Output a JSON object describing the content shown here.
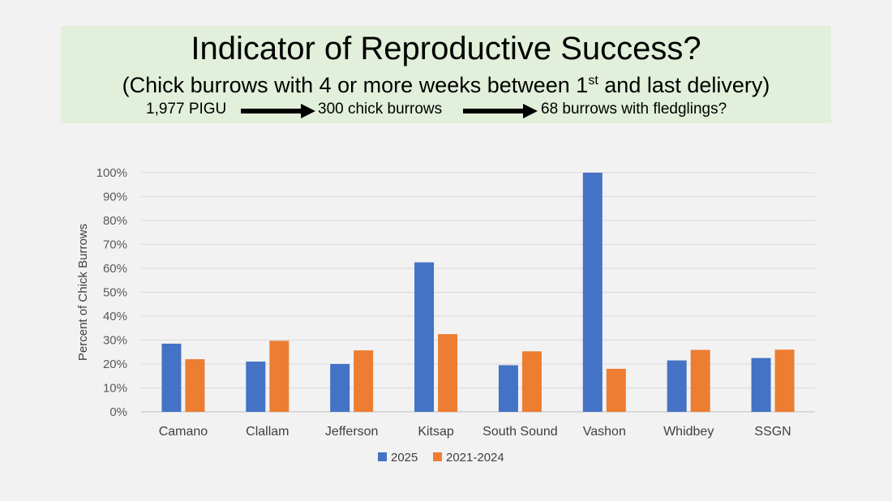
{
  "header": {
    "title": "Indicator of Reproductive Success?",
    "subtitle_main": "(Chick burrows with 4 or more weeks between 1",
    "subtitle_sup": "st",
    "subtitle_end": " and last delivery)",
    "flow": [
      "1,977 PIGU",
      "300 chick burrows",
      "68 burrows with fledglings?"
    ]
  },
  "colors": {
    "series_2025": "#4472c4",
    "series_2021_2024": "#ed7d31",
    "header_bg": "#e2efda"
  },
  "chart_data": {
    "type": "bar",
    "categories": [
      "Camano",
      "Clallam",
      "Jefferson",
      "Kitsap",
      "South Sound",
      "Vashon",
      "Whidbey",
      "SSGN"
    ],
    "series": [
      {
        "name": "2025",
        "values": [
          28.5,
          21,
          20,
          62.5,
          19.5,
          100,
          21.5,
          22.5
        ]
      },
      {
        "name": "2021-2024",
        "values": [
          22,
          29.7,
          25.7,
          32.5,
          25.3,
          18,
          25.9,
          26
        ]
      }
    ],
    "ylabel": "Percent of Chick Burrows",
    "ylim": [
      0,
      100
    ],
    "yticks": [
      "0%",
      "10%",
      "20%",
      "30%",
      "40%",
      "50%",
      "60%",
      "70%",
      "80%",
      "90%",
      "100%"
    ],
    "grid": true,
    "legend": "bottom"
  }
}
